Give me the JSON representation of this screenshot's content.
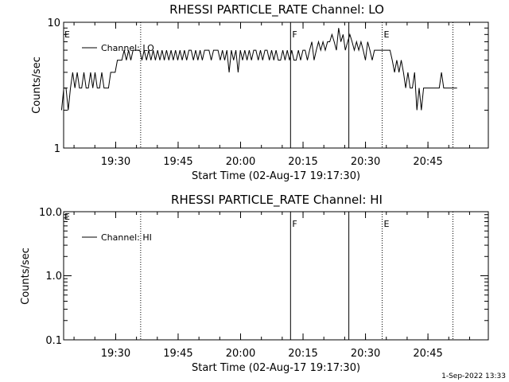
{
  "footer": {
    "timestamp": "1-Sep-2022 13:33"
  },
  "chart_data": [
    {
      "type": "line",
      "title": "RHESSI PARTICLE_RATE Channel: LO",
      "xlabel": "Start Time (02-Aug-17 19:17:30)",
      "ylabel": "Counts/sec",
      "yscale": "log",
      "ylim": [
        1,
        10
      ],
      "xlim_minutes": [
        19.3,
        20.9
      ],
      "xticks": [
        "19:30",
        "19:45",
        "20:00",
        "20:15",
        "20:30",
        "20:45"
      ],
      "yticks": [
        "1",
        "10"
      ],
      "legend": {
        "position": "top-left",
        "entries": [
          "Channel: LO"
        ]
      },
      "markers": [
        {
          "time": "19:36",
          "style": "dotted",
          "label": ""
        },
        {
          "time": "20:12",
          "style": "solid",
          "label": "F"
        },
        {
          "time": "20:26",
          "style": "solid",
          "label": ""
        },
        {
          "time": "20:34",
          "style": "dotted",
          "label": "E"
        },
        {
          "time": "20:51",
          "style": "dotted",
          "label": ""
        }
      ],
      "corner_label": "E",
      "series": [
        {
          "name": "Channel: LO",
          "values": [
            2,
            3,
            3,
            2,
            3,
            4,
            3,
            4,
            3,
            3,
            4,
            3,
            3,
            4,
            3,
            4,
            3,
            3,
            4,
            3,
            3,
            3,
            4,
            4,
            4,
            5,
            5,
            5,
            6,
            5,
            6,
            5,
            6,
            6,
            6,
            6,
            5,
            6,
            5,
            6,
            5,
            6,
            5,
            6,
            5,
            6,
            5,
            6,
            5,
            6,
            5,
            6,
            5,
            6,
            5,
            6,
            5,
            6,
            6,
            5,
            6,
            5,
            6,
            5,
            6,
            6,
            6,
            5,
            6,
            6,
            6,
            5,
            6,
            5,
            6,
            4,
            6,
            5,
            6,
            4,
            6,
            5,
            6,
            5,
            6,
            5,
            6,
            6,
            5,
            6,
            5,
            6,
            6,
            5,
            6,
            5,
            6,
            5,
            5,
            6,
            5,
            6,
            5,
            6,
            5,
            5,
            6,
            5,
            6,
            6,
            5,
            6,
            7,
            5,
            6,
            7,
            6,
            7,
            6,
            7,
            7,
            8,
            7,
            6,
            9,
            7,
            8,
            6,
            7,
            8,
            7,
            6,
            7,
            6,
            7,
            6,
            5,
            7,
            6,
            5,
            6,
            6,
            6,
            6,
            6,
            6,
            6,
            6,
            5,
            4,
            5,
            4,
            5,
            4,
            3,
            4,
            3,
            3,
            4,
            2,
            3,
            2,
            3,
            3,
            3,
            3,
            3,
            3,
            3,
            3,
            4,
            3,
            3,
            3,
            3,
            3,
            3,
            3
          ],
          "time_range": [
            "19:17",
            "20:52"
          ]
        }
      ]
    },
    {
      "type": "line",
      "title": "RHESSI PARTICLE_RATE Channel: HI",
      "xlabel": "Start Time (02-Aug-17 19:17:30)",
      "ylabel": "Counts/sec",
      "yscale": "log",
      "ylim": [
        0.1,
        10
      ],
      "xticks": [
        "19:30",
        "19:45",
        "20:00",
        "20:15",
        "20:30",
        "20:45"
      ],
      "yticks": [
        "10.0",
        "1.0",
        "0.1"
      ],
      "legend": {
        "position": "top-left",
        "entries": [
          "Channel: HI"
        ]
      },
      "markers": [
        {
          "time": "19:36",
          "style": "dotted",
          "label": ""
        },
        {
          "time": "20:12",
          "style": "solid",
          "label": "F"
        },
        {
          "time": "20:26",
          "style": "solid",
          "label": ""
        },
        {
          "time": "20:34",
          "style": "dotted",
          "label": "E"
        },
        {
          "time": "20:51",
          "style": "dotted",
          "label": ""
        }
      ],
      "corner_label": "E",
      "series": [
        {
          "name": "Channel: HI",
          "values": []
        }
      ]
    }
  ]
}
